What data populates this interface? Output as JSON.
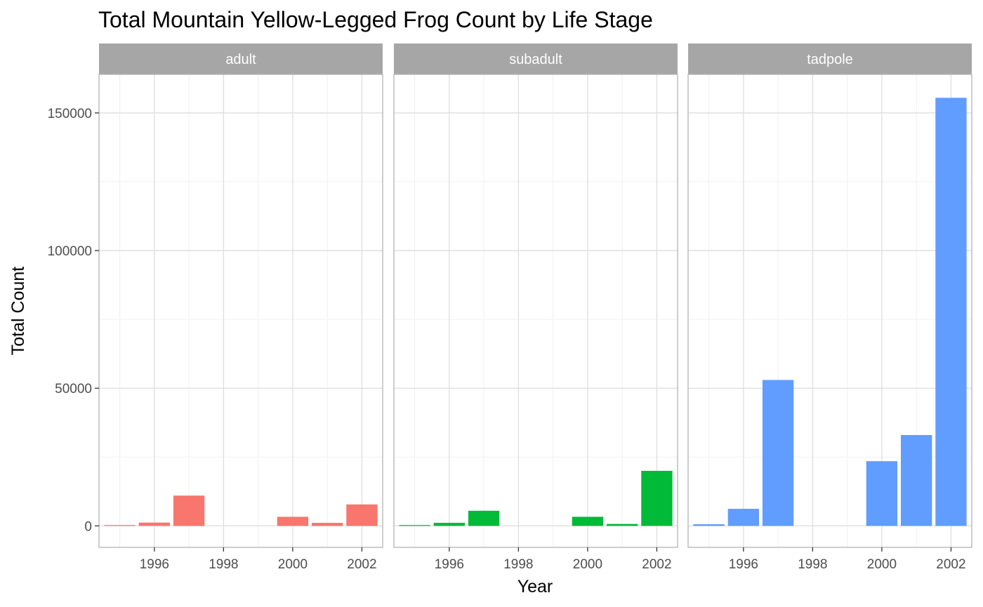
{
  "chart_data": {
    "type": "bar",
    "title": "Total Mountain Yellow-Legged Frog Count by Life Stage",
    "xlabel": "Year",
    "ylabel": "Total Count",
    "xlim": [
      1994.4,
      2002.6
    ],
    "ylim": [
      -7800,
      164000
    ],
    "x_ticks": [
      1996,
      1998,
      2000,
      2002
    ],
    "y_ticks": [
      0,
      50000,
      100000,
      150000
    ],
    "y_tick_labels": [
      "0",
      "50000",
      "100000",
      "150000"
    ],
    "grid": true,
    "legend": "none",
    "panels": [
      {
        "name": "adult",
        "color": "#F8766D",
        "x": [
          1995,
          1996,
          1997,
          2000,
          2001,
          2002
        ],
        "values": [
          300,
          1200,
          11000,
          3300,
          1100,
          7800
        ]
      },
      {
        "name": "subadult",
        "color": "#00BA38",
        "x": [
          1995,
          1996,
          1997,
          2000,
          2001,
          2002
        ],
        "values": [
          300,
          1100,
          5500,
          3300,
          700,
          20000
        ]
      },
      {
        "name": "tadpole",
        "color": "#619CFF",
        "x": [
          1995,
          1996,
          1997,
          2000,
          2001,
          2002
        ],
        "values": [
          600,
          6200,
          53000,
          23500,
          33000,
          155500
        ]
      }
    ]
  }
}
